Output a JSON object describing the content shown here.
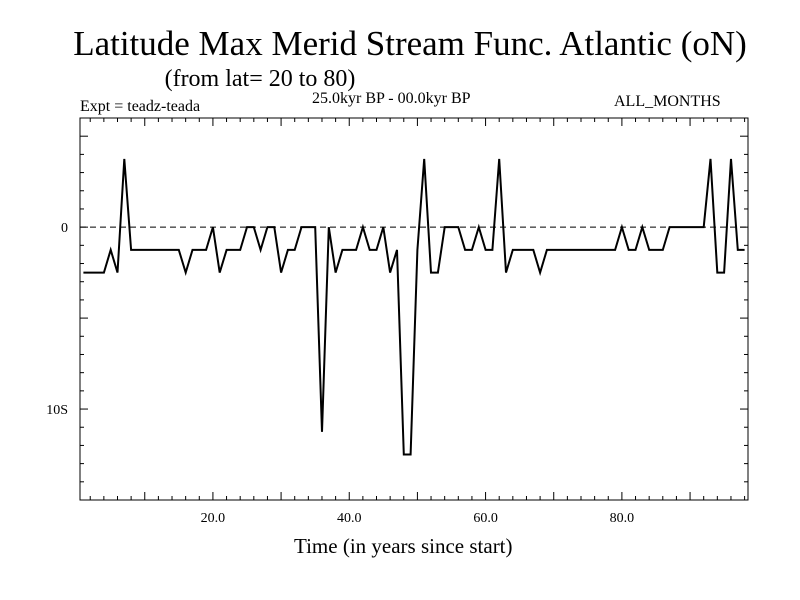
{
  "chart_data": {
    "type": "line",
    "title": "Latitude Max Merid Stream Func. Atlantic (oN)",
    "subtitle": "(from lat= 20 to 80)",
    "annotations": {
      "experiment": "Expt = teadz-teada",
      "period": "25.0kyr BP - 00.0kyr BP",
      "months": "ALL_MONTHS"
    },
    "xlabel": "Time (in years since start)",
    "ylabel": "",
    "xlim": [
      0.5,
      98.5
    ],
    "ylim": [
      -15,
      6
    ],
    "x_ticks": [
      20,
      40,
      60,
      80
    ],
    "x_tick_labels": [
      "20.0",
      "40.0",
      "60.0",
      "80.0"
    ],
    "y_ticks": [
      0,
      -10
    ],
    "y_tick_labels": [
      "0",
      "10S"
    ],
    "reference_line": {
      "y": 0,
      "style": "dashed"
    },
    "x": [
      1,
      2,
      3,
      4,
      5,
      6,
      7,
      8,
      9,
      10,
      11,
      12,
      13,
      14,
      15,
      16,
      17,
      18,
      19,
      20,
      21,
      22,
      23,
      24,
      25,
      26,
      27,
      28,
      29,
      30,
      31,
      32,
      33,
      34,
      35,
      36,
      37,
      38,
      39,
      40,
      41,
      42,
      43,
      44,
      45,
      46,
      47,
      48,
      49,
      50,
      51,
      52,
      53,
      54,
      55,
      56,
      57,
      58,
      59,
      60,
      61,
      62,
      63,
      64,
      65,
      66,
      67,
      68,
      69,
      70,
      71,
      72,
      73,
      74,
      75,
      76,
      77,
      78,
      79,
      80,
      81,
      82,
      83,
      84,
      85,
      86,
      87,
      88,
      89,
      90,
      91,
      92,
      93,
      94,
      95,
      96,
      97,
      98
    ],
    "series": [
      {
        "name": "teadz-teada",
        "values": [
          -2.5,
          -2.5,
          -2.5,
          -2.5,
          -1.25,
          -2.5,
          3.75,
          -1.25,
          -1.25,
          -1.25,
          -1.25,
          -1.25,
          -1.25,
          -1.25,
          -1.25,
          -2.5,
          -1.25,
          -1.25,
          -1.25,
          0,
          -2.5,
          -1.25,
          -1.25,
          -1.25,
          0,
          0,
          -1.25,
          0,
          0,
          -2.5,
          -1.25,
          -1.25,
          0,
          0,
          0,
          -11.25,
          0,
          -2.5,
          -1.25,
          -1.25,
          -1.25,
          0,
          -1.25,
          -1.25,
          0,
          -2.5,
          -1.25,
          -12.5,
          -12.5,
          -1.25,
          3.75,
          -2.5,
          -2.5,
          0,
          0,
          0,
          -1.25,
          -1.25,
          0,
          -1.25,
          -1.25,
          3.75,
          -2.5,
          -1.25,
          -1.25,
          -1.25,
          -1.25,
          -2.5,
          -1.25,
          -1.25,
          -1.25,
          -1.25,
          -1.25,
          -1.25,
          -1.25,
          -1.25,
          -1.25,
          -1.25,
          -1.25,
          0,
          -1.25,
          -1.25,
          0,
          -1.25,
          -1.25,
          -1.25,
          0,
          0,
          0,
          0,
          0,
          0,
          3.75,
          -2.5,
          -2.5,
          3.75,
          -1.25,
          -1.25
        ]
      }
    ]
  }
}
